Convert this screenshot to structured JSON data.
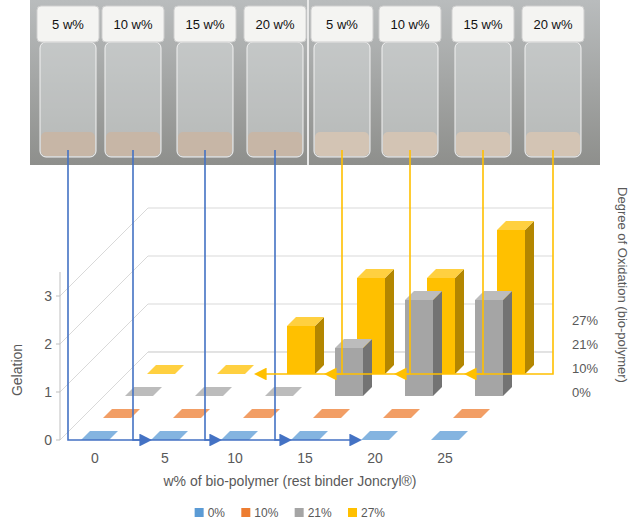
{
  "chart_data": {
    "type": "bar",
    "categories": [
      0,
      5,
      10,
      15,
      20,
      25
    ],
    "series": [
      {
        "name": "0%",
        "color": "#5b9bd5",
        "values": [
          0,
          0,
          0,
          0,
          0,
          0
        ]
      },
      {
        "name": "10%",
        "color": "#ed7d31",
        "values": [
          0,
          0,
          0,
          0,
          0,
          0
        ]
      },
      {
        "name": "21%",
        "color": "#a5a5a5",
        "values": [
          0,
          0,
          0,
          1,
          2,
          2
        ]
      },
      {
        "name": "27%",
        "color": "#ffc000",
        "values": [
          0,
          0,
          1,
          2,
          2,
          3
        ]
      }
    ],
    "x_label": "w% of bio-polymer (rest binder Joncryl®)",
    "y_label": "Gelation",
    "z_label": "Degree of Oxidation (bio-polymer)",
    "ylim": [
      0,
      3.5
    ],
    "yticks": [
      0,
      1,
      2,
      3
    ],
    "grid": true,
    "legend": "bottom"
  },
  "photo": {
    "labels": [
      "5 w%",
      "10 w%",
      "15 w%",
      "20 w%",
      "5 w%",
      "10 w%",
      "15 w%",
      "20 w%"
    ]
  }
}
